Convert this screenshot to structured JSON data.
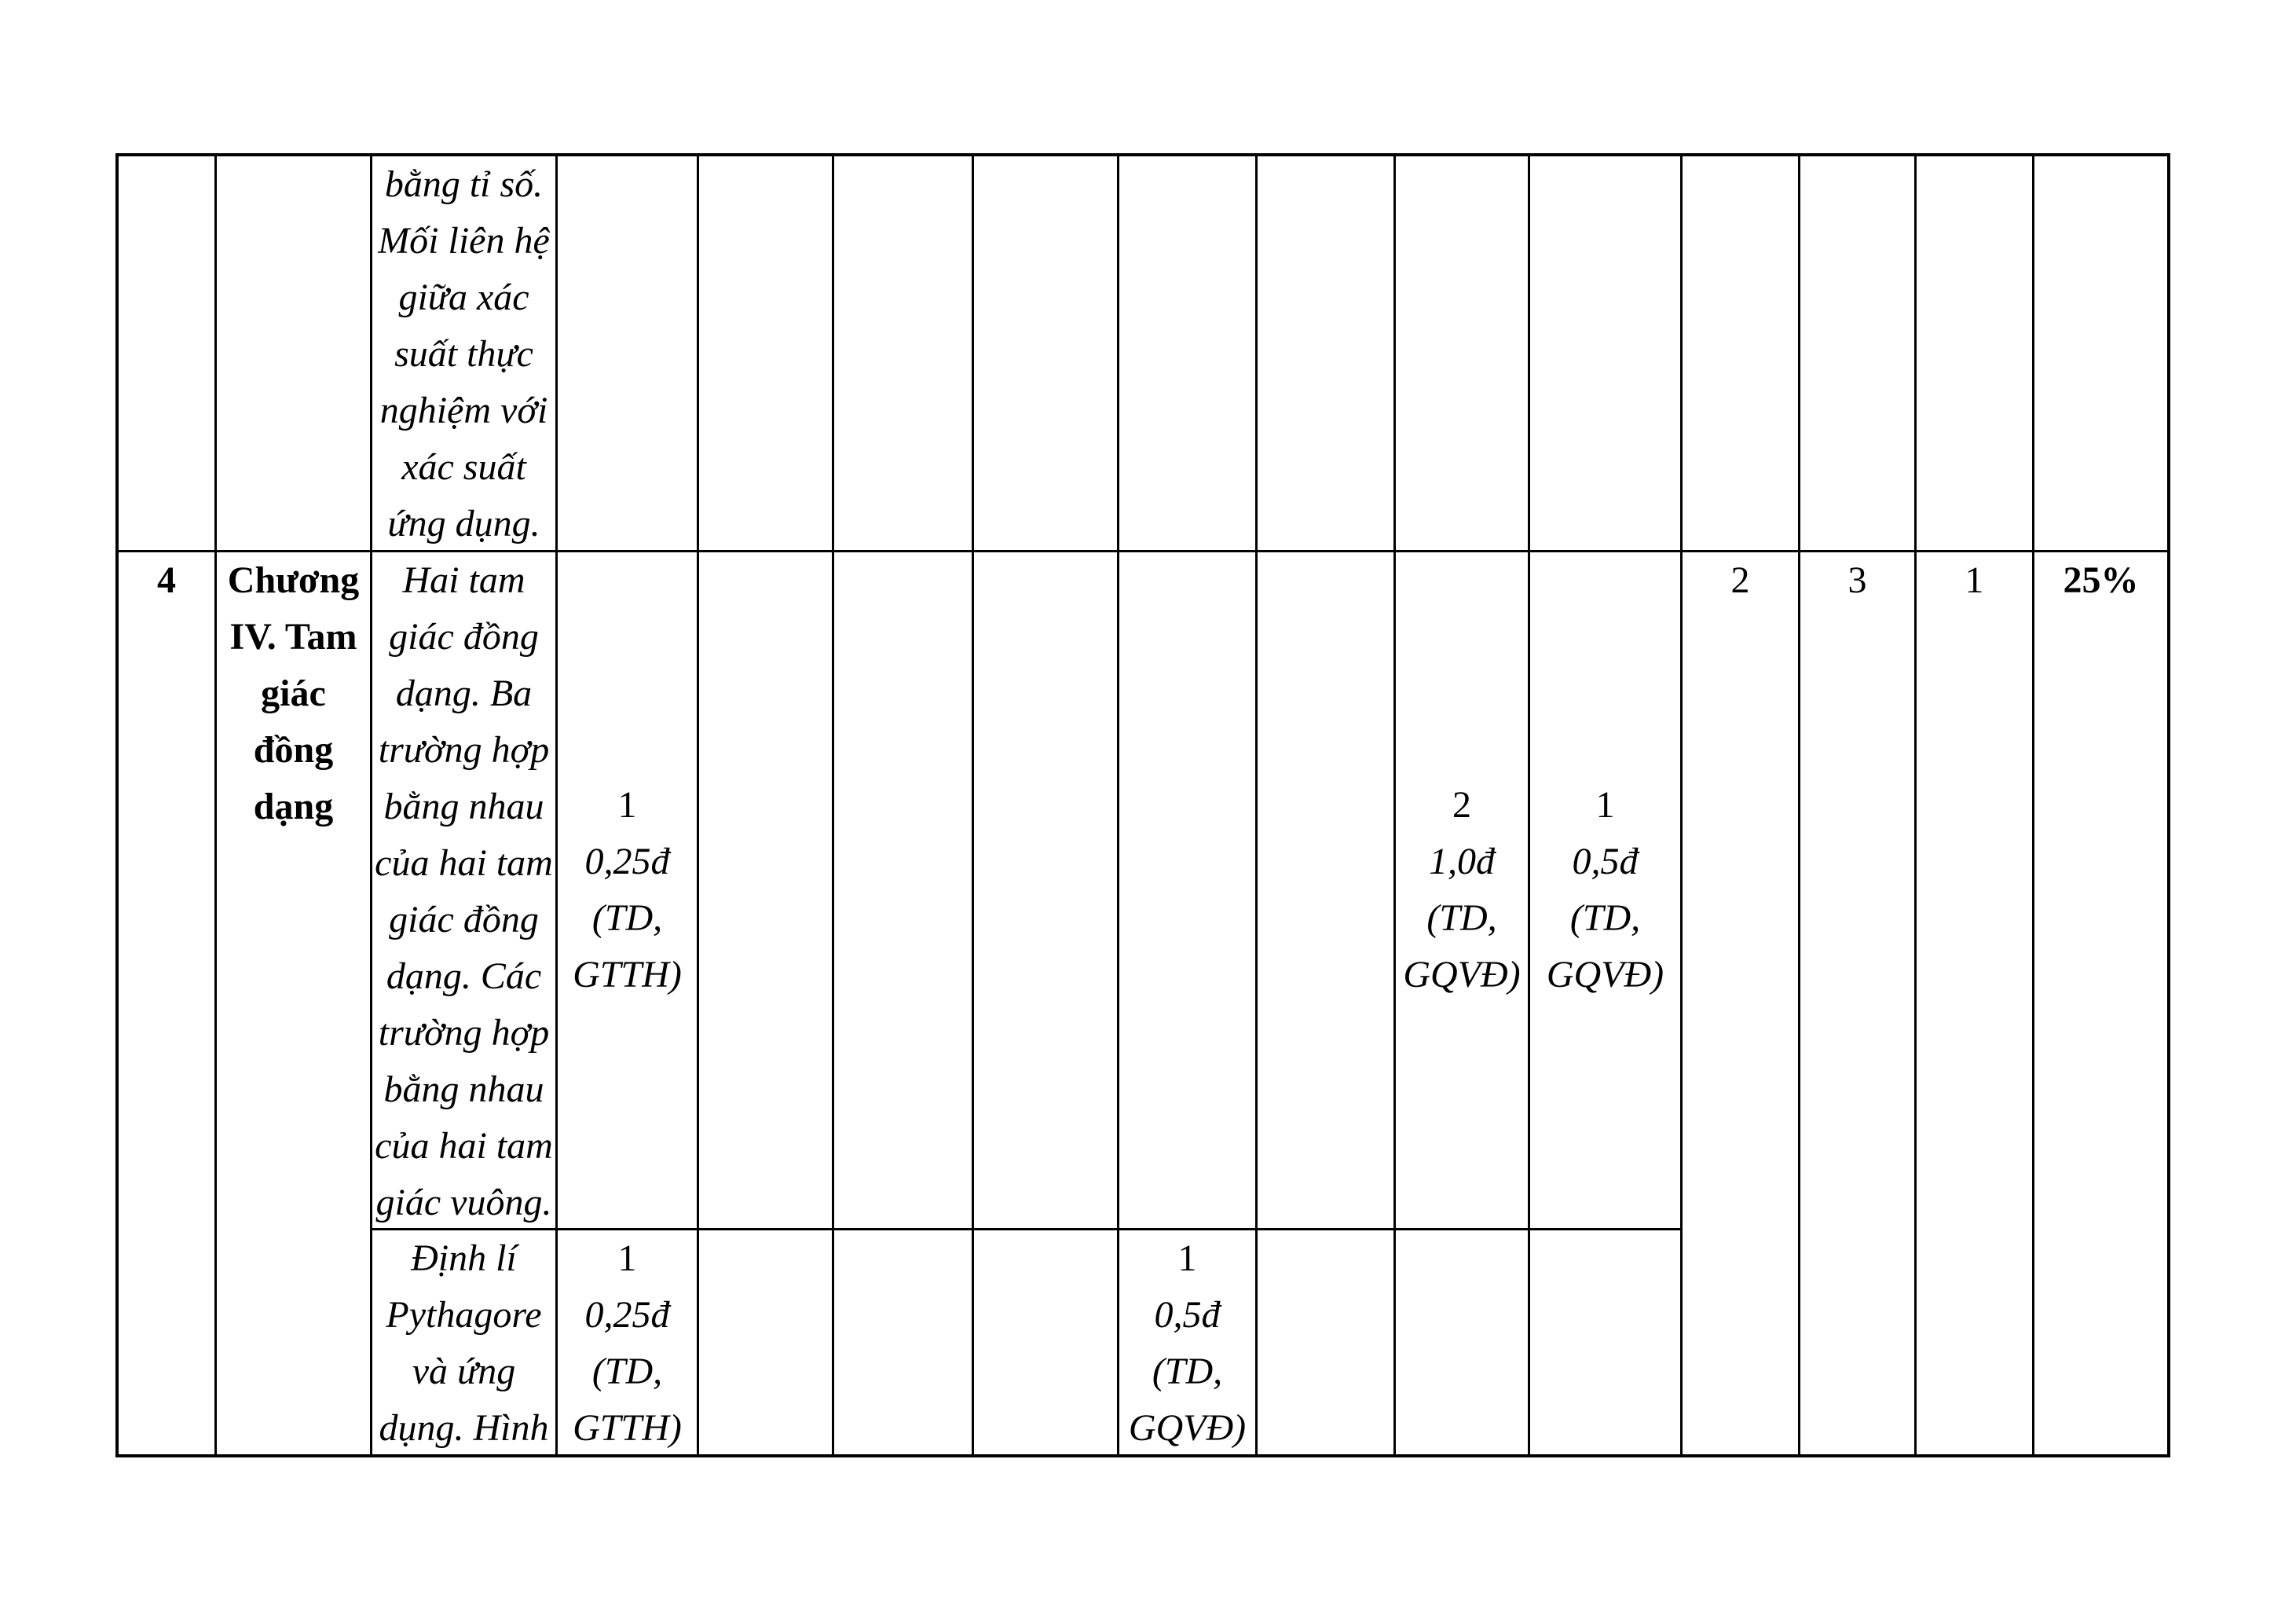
{
  "table": {
    "row_top": {
      "col3_text": "bằng tỉ số.\nMối liên hệ\ngiữa xác\nsuất thực\nnghiệm với\nxác suất\nứng dụng."
    },
    "row_4": {
      "stt": "4",
      "chapter": "Chương\nIV. Tam\ngiác\nđồng\ndạng",
      "sub1": {
        "content": "Hai tam\ngiác đồng\ndạng. Ba\ntrường hợp\nbằng nhau\ncủa hai tam\ngiác đồng\ndạng. Các\ntrường hợp\nbằng nhau\ncủa hai tam\ngiác vuông.",
        "col4_count": "1",
        "col4_detail": "0,25đ\n(TD,\nGTTH)",
        "col10_count": "2",
        "col10_detail": "1,0đ\n(TD,\nGQVĐ)",
        "col11_count": "1",
        "col11_detail": "0,5đ\n(TD,\nGQVĐ)"
      },
      "sub2": {
        "content": "Định lí\nPythagore\nvà ứng\ndụng. Hình",
        "col4_count": "1",
        "col4_detail": "0,25đ\n(TD,\nGTTH)",
        "col8_count": "1",
        "col8_detail": "0,5đ\n(TD,\nGQVĐ)"
      },
      "totals": {
        "col12": "2",
        "col13": "3",
        "col14": "1",
        "col15": "25%"
      }
    }
  }
}
